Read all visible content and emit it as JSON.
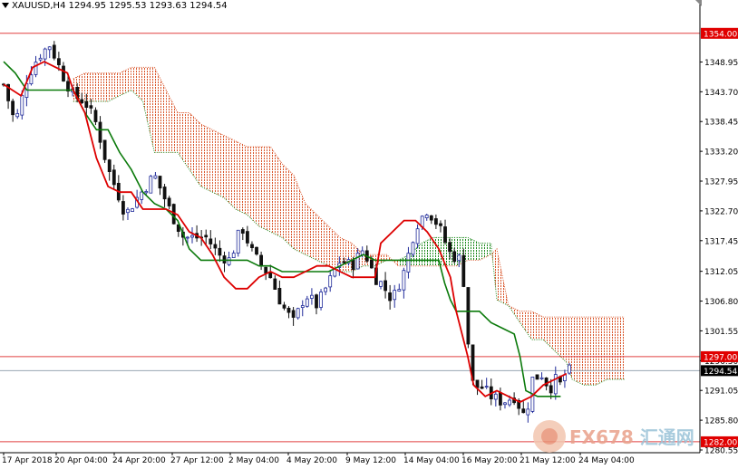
{
  "header": {
    "symbol": "XAUUSD,H4",
    "open": "1294.95",
    "high": "1295.53",
    "low": "1293.63",
    "close": "1294.54"
  },
  "logo": {
    "latin": "FX678",
    "chinese": "汇通网"
  },
  "colors": {
    "bull_candle": "#1f2a9a",
    "bear_candle": "#111111",
    "tenkan": "#dd0000",
    "kijun": "#0b7a0b",
    "kumo_bear": "#d9552a",
    "kumo_bull": "#1e8a1e",
    "hline": "#e04040",
    "price_line": "#9aa6b2",
    "label_red": "#e00000",
    "label_dark": "#000000"
  },
  "chart_data": {
    "type": "candlestick",
    "indicator": "Ichimoku",
    "y_range": [
      1280.55,
      1357.8
    ],
    "y_ticks": [
      "1348.95",
      "1343.70",
      "1338.45",
      "1333.20",
      "1327.95",
      "1322.70",
      "1317.45",
      "1312.05",
      "1306.80",
      "1301.55",
      "1296.30",
      "1291.05",
      "1285.80",
      "1280.55"
    ],
    "x_ticks": [
      "17 Apr 2018",
      "20 Apr 04:00",
      "24 Apr 20:00",
      "27 Apr 12:00",
      "2 May 04:00",
      "4 May 20:00",
      "9 May 12:00",
      "14 May 04:00",
      "16 May 20:00",
      "21 May 12:00",
      "24 May 04:00"
    ],
    "horizontal_levels": [
      {
        "value": 1354.0,
        "label": "1354.00",
        "style": "red"
      },
      {
        "value": 1297.0,
        "label": "1297.00",
        "style": "red"
      },
      {
        "value": 1282.0,
        "label": "1282.00",
        "style": "red"
      }
    ],
    "current_price": {
      "value": 1294.54,
      "label": "1294.54"
    },
    "close_path": [
      [
        0,
        1345
      ],
      [
        2,
        1338
      ],
      [
        4,
        1346
      ],
      [
        6,
        1350
      ],
      [
        8,
        1352
      ],
      [
        10,
        1347
      ],
      [
        12,
        1343
      ],
      [
        14,
        1342
      ],
      [
        16,
        1338
      ],
      [
        18,
        1330
      ],
      [
        20,
        1325
      ],
      [
        21,
        1322
      ],
      [
        23,
        1325
      ],
      [
        26,
        1329
      ],
      [
        29,
        1322
      ],
      [
        31,
        1318
      ],
      [
        33,
        1318
      ],
      [
        35,
        1318
      ],
      [
        37,
        1315
      ],
      [
        39,
        1314
      ],
      [
        41,
        1320
      ],
      [
        43,
        1315
      ],
      [
        46,
        1311
      ],
      [
        48,
        1306
      ],
      [
        50,
        1303
      ],
      [
        52,
        1308
      ],
      [
        54,
        1306
      ],
      [
        56,
        1310
      ],
      [
        58,
        1314
      ],
      [
        60,
        1313
      ],
      [
        62,
        1316
      ],
      [
        64,
        1311
      ],
      [
        65,
        1310
      ],
      [
        67,
        1307
      ],
      [
        69,
        1312
      ],
      [
        71,
        1320
      ],
      [
        73,
        1323
      ],
      [
        75,
        1320
      ],
      [
        77,
        1315
      ],
      [
        79,
        1314
      ],
      [
        80,
        1300
      ],
      [
        81,
        1291
      ],
      [
        82,
        1292
      ],
      [
        84,
        1290
      ],
      [
        86,
        1289
      ],
      [
        88,
        1290
      ],
      [
        90,
        1286
      ],
      [
        91,
        1293
      ],
      [
        93,
        1294
      ],
      [
        94,
        1291
      ],
      [
        95,
        1293
      ],
      [
        96,
        1292
      ],
      [
        97,
        1294.5
      ]
    ],
    "tenkan_sen": [
      [
        0,
        1345
      ],
      [
        3,
        1343
      ],
      [
        5,
        1348
      ],
      [
        7,
        1349
      ],
      [
        9,
        1348
      ],
      [
        11,
        1347
      ],
      [
        12,
        1344
      ],
      [
        14,
        1340
      ],
      [
        16,
        1332
      ],
      [
        18,
        1327
      ],
      [
        20,
        1326
      ],
      [
        22,
        1326
      ],
      [
        24,
        1323
      ],
      [
        26,
        1323
      ],
      [
        28,
        1323
      ],
      [
        30,
        1322
      ],
      [
        32,
        1319
      ],
      [
        34,
        1318
      ],
      [
        36,
        1315
      ],
      [
        38,
        1311
      ],
      [
        40,
        1309
      ],
      [
        42,
        1309
      ],
      [
        44,
        1311
      ],
      [
        46,
        1312
      ],
      [
        48,
        1311
      ],
      [
        50,
        1311
      ],
      [
        52,
        1312
      ],
      [
        54,
        1313
      ],
      [
        56,
        1313
      ],
      [
        58,
        1312
      ],
      [
        60,
        1311
      ],
      [
        62,
        1311
      ],
      [
        64,
        1311
      ],
      [
        65,
        1317
      ],
      [
        67,
        1319
      ],
      [
        69,
        1321
      ],
      [
        71,
        1321
      ],
      [
        73,
        1319
      ],
      [
        75,
        1316
      ],
      [
        77,
        1311
      ],
      [
        78,
        1305
      ],
      [
        80,
        1297
      ],
      [
        81,
        1292
      ],
      [
        83,
        1290
      ],
      [
        85,
        1291
      ],
      [
        87,
        1290
      ],
      [
        89,
        1289
      ],
      [
        91,
        1290
      ],
      [
        93,
        1292
      ],
      [
        95,
        1293
      ],
      [
        97,
        1294
      ]
    ],
    "kijun_sen": [
      [
        0,
        1349
      ],
      [
        2,
        1347
      ],
      [
        4,
        1344
      ],
      [
        6,
        1344
      ],
      [
        8,
        1344
      ],
      [
        10,
        1344
      ],
      [
        12,
        1344
      ],
      [
        14,
        1340
      ],
      [
        16,
        1337
      ],
      [
        18,
        1337
      ],
      [
        20,
        1333
      ],
      [
        22,
        1330
      ],
      [
        24,
        1326
      ],
      [
        26,
        1324
      ],
      [
        28,
        1323
      ],
      [
        30,
        1321
      ],
      [
        32,
        1316
      ],
      [
        34,
        1314
      ],
      [
        36,
        1314
      ],
      [
        38,
        1314
      ],
      [
        40,
        1314
      ],
      [
        42,
        1314
      ],
      [
        44,
        1313
      ],
      [
        46,
        1313
      ],
      [
        48,
        1312
      ],
      [
        50,
        1312
      ],
      [
        52,
        1312
      ],
      [
        54,
        1312
      ],
      [
        56,
        1312
      ],
      [
        58,
        1313
      ],
      [
        60,
        1314
      ],
      [
        62,
        1315
      ],
      [
        64,
        1314
      ],
      [
        65,
        1314
      ],
      [
        67,
        1314
      ],
      [
        69,
        1314
      ],
      [
        71,
        1314
      ],
      [
        73,
        1314
      ],
      [
        75,
        1314
      ],
      [
        76,
        1310
      ],
      [
        77,
        1307
      ],
      [
        78,
        1305
      ],
      [
        80,
        1305
      ],
      [
        82,
        1305
      ],
      [
        84,
        1303
      ],
      [
        86,
        1302
      ],
      [
        88,
        1301
      ],
      [
        89,
        1297
      ],
      [
        90,
        1291
      ],
      [
        92,
        1290
      ],
      [
        94,
        1290
      ],
      [
        96,
        1290
      ]
    ],
    "kumo": [
      [
        12,
        1346,
        1342
      ],
      [
        14,
        1347,
        1342
      ],
      [
        16,
        1347,
        1342
      ],
      [
        18,
        1347,
        1342
      ],
      [
        20,
        1347,
        1343
      ],
      [
        22,
        1348,
        1344
      ],
      [
        24,
        1348,
        1342
      ],
      [
        26,
        1348,
        1333
      ],
      [
        28,
        1344,
        1333
      ],
      [
        30,
        1340,
        1333
      ],
      [
        32,
        1340,
        1330
      ],
      [
        34,
        1338,
        1327
      ],
      [
        36,
        1337,
        1326
      ],
      [
        38,
        1336,
        1325
      ],
      [
        40,
        1335,
        1323
      ],
      [
        42,
        1334,
        1322
      ],
      [
        44,
        1334,
        1320
      ],
      [
        46,
        1334,
        1319
      ],
      [
        48,
        1331,
        1318
      ],
      [
        50,
        1329,
        1316
      ],
      [
        52,
        1324,
        1315
      ],
      [
        54,
        1322,
        1314
      ],
      [
        56,
        1320,
        1313
      ],
      [
        58,
        1318,
        1312
      ],
      [
        60,
        1317,
        1312
      ],
      [
        62,
        1315,
        1313
      ],
      [
        64,
        1315,
        1313
      ],
      [
        66,
        1315,
        1314
      ],
      [
        68,
        1313,
        1314
      ],
      [
        70,
        1313,
        1315
      ],
      [
        72,
        1313,
        1317
      ],
      [
        74,
        1313,
        1318
      ],
      [
        76,
        1313,
        1318
      ],
      [
        78,
        1313,
        1318
      ],
      [
        80,
        1314,
        1318
      ],
      [
        82,
        1314,
        1317
      ],
      [
        84,
        1315,
        1317
      ],
      [
        85,
        1316,
        1307
      ],
      [
        87,
        1306,
        1306
      ],
      [
        89,
        1305,
        1303
      ],
      [
        91,
        1305,
        1300
      ],
      [
        93,
        1304,
        1300
      ],
      [
        95,
        1304,
        1298
      ],
      [
        97,
        1304,
        1296
      ],
      [
        98,
        1304,
        1293
      ],
      [
        100,
        1304,
        1292
      ],
      [
        102,
        1304,
        1292
      ],
      [
        104,
        1304,
        1293
      ],
      [
        106,
        1304,
        1293
      ],
      [
        107,
        1304,
        1293
      ]
    ]
  }
}
